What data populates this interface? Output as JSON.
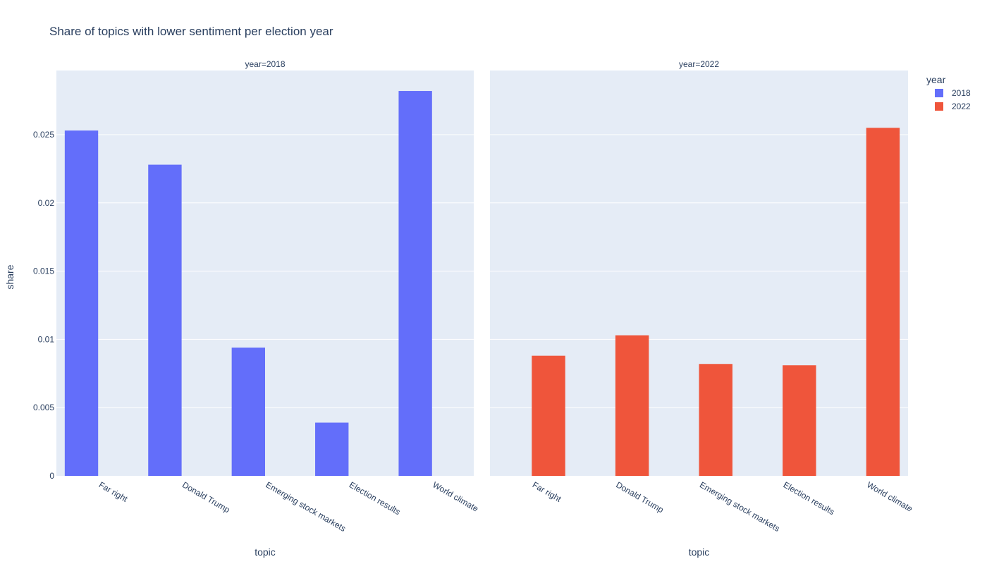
{
  "chart_data": {
    "type": "bar",
    "title": "Share of topics with lower sentiment per election year",
    "xlabel": "topic",
    "ylabel": "share",
    "ylim": [
      0,
      0.0297
    ],
    "yticks": [
      "0",
      "0.005",
      "0.01",
      "0.015",
      "0.02",
      "0.025"
    ],
    "categories": [
      "Far right",
      "Donald Trump",
      "Emerging stock markets",
      "Election results",
      "World climate"
    ],
    "legend": {
      "title": "year",
      "position": "top-right"
    },
    "grid": true,
    "facets": [
      {
        "title": "year=2018",
        "series": "2018"
      },
      {
        "title": "year=2022",
        "series": "2022"
      }
    ],
    "series": [
      {
        "name": "2018",
        "color": "#636efa",
        "values": [
          0.0253,
          0.0228,
          0.0094,
          0.0039,
          0.0282
        ]
      },
      {
        "name": "2022",
        "color": "#ef553b",
        "values": [
          0.0088,
          0.0103,
          0.0082,
          0.0081,
          0.0255
        ]
      }
    ]
  }
}
